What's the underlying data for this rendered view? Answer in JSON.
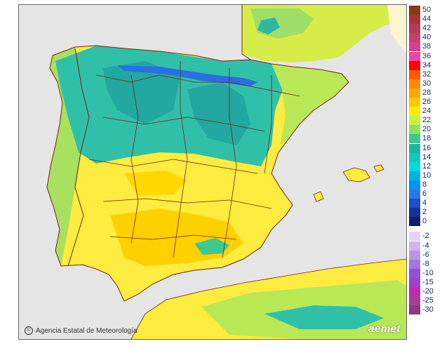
{
  "map": {
    "credit": "Agencia Estatal de Meteorología",
    "credit_symbol": "©",
    "logo": "aemet"
  },
  "legend": {
    "warm": [
      {
        "label": "50",
        "color": "#8b3a0f"
      },
      {
        "label": "44",
        "color": "#a8323a"
      },
      {
        "label": "42",
        "color": "#b83a56"
      },
      {
        "label": "40",
        "color": "#c83c70"
      },
      {
        "label": "38",
        "color": "#d8408a"
      },
      {
        "label": "36",
        "color": "#f042a8"
      },
      {
        "label": "34",
        "color": "#ff0000"
      },
      {
        "label": "32",
        "color": "#ff5a00"
      },
      {
        "label": "30",
        "color": "#ff8a00"
      },
      {
        "label": "28",
        "color": "#ffa800"
      },
      {
        "label": "26",
        "color": "#ffc800"
      },
      {
        "label": "24",
        "color": "#ffee00"
      },
      {
        "label": "22",
        "color": "#c8f040"
      },
      {
        "label": "20",
        "color": "#8ee060"
      },
      {
        "label": "18",
        "color": "#3cc890"
      },
      {
        "label": "16",
        "color": "#22b4a0"
      },
      {
        "label": "14",
        "color": "#10c8c0"
      },
      {
        "label": "12",
        "color": "#00dcdc"
      },
      {
        "label": "10",
        "color": "#00b4e6"
      },
      {
        "label": "8",
        "color": "#0096f0"
      },
      {
        "label": "6",
        "color": "#2a78e6"
      },
      {
        "label": "4",
        "color": "#1e4ec8"
      },
      {
        "label": "2",
        "color": "#14329a"
      },
      {
        "label": "0",
        "color": "#0a1e6e"
      }
    ],
    "cold": [
      {
        "label": "-2",
        "color": "#e6d2f5"
      },
      {
        "label": "-4",
        "color": "#d2b4ee"
      },
      {
        "label": "-6",
        "color": "#bc96e6"
      },
      {
        "label": "-8",
        "color": "#a676de"
      },
      {
        "label": "-10",
        "color": "#9050d8"
      },
      {
        "label": "-15",
        "color": "#a040c8"
      },
      {
        "label": "-20",
        "color": "#c02ab0"
      },
      {
        "label": "-25",
        "color": "#b03a98"
      },
      {
        "label": "-30",
        "color": "#8a3a80"
      }
    ]
  }
}
